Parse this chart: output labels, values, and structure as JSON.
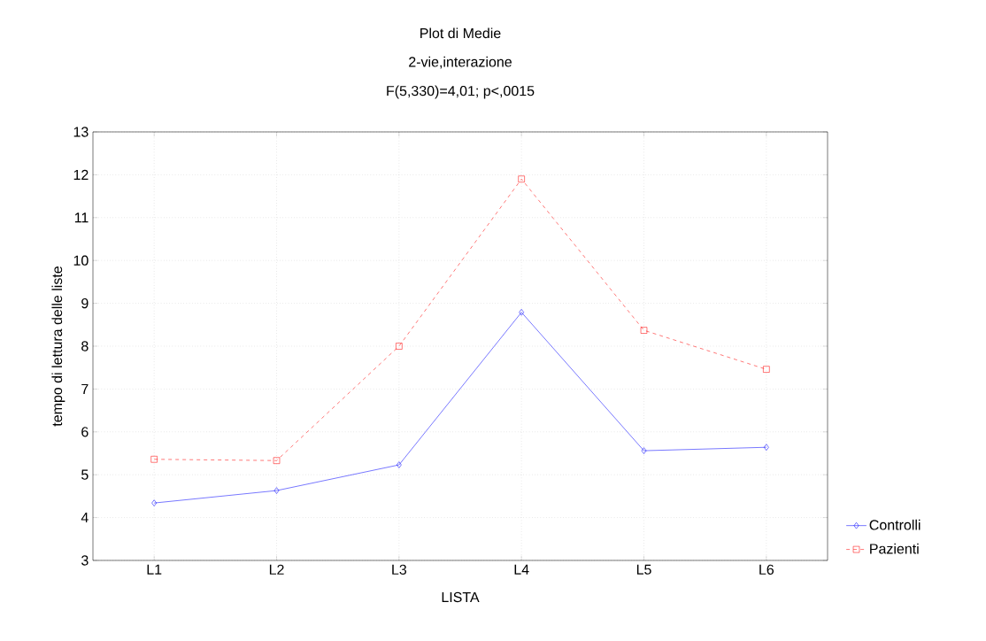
{
  "chart_data": {
    "type": "line",
    "title": "Plot di Medie",
    "subtitle": "2-vie,interazione",
    "annotations": [
      "F(5,330)=4,01; p<,0015"
    ],
    "xlabel": "LISTA",
    "ylabel": "tempo di lettura delle liste",
    "categories": [
      "L1",
      "L2",
      "L3",
      "L4",
      "L5",
      "L6"
    ],
    "series": [
      {
        "name": "Controlli",
        "color": "#0000ff",
        "marker": "diamond",
        "line_style": "solid",
        "values": [
          4.34,
          4.63,
          5.23,
          8.79,
          5.56,
          5.64
        ]
      },
      {
        "name": "Pazienti",
        "color": "#ff0000",
        "marker": "square",
        "line_style": "dashed",
        "values": [
          5.36,
          5.33,
          8.0,
          11.9,
          8.37,
          7.46
        ]
      }
    ],
    "ylim": [
      3,
      13
    ],
    "yticks": [
      3,
      4,
      5,
      6,
      7,
      8,
      9,
      10,
      11,
      12,
      13
    ],
    "grid": true,
    "legend": "bottom right"
  }
}
